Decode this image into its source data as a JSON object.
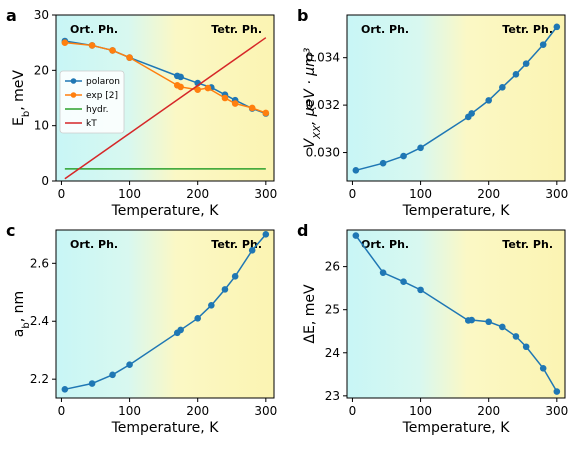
{
  "chart_data": [
    {
      "panel": "a",
      "type": "line",
      "xlabel": "Temperature, K",
      "ylabel": "E",
      "ylabel_sub": "b",
      "ylabel_unit": ", meV",
      "xlim": [
        -8,
        312
      ],
      "ylim": [
        0,
        30
      ],
      "xticks": [
        0,
        100,
        200,
        300
      ],
      "yticks": [
        0,
        10,
        20,
        30
      ],
      "phase_labels": [
        "Ort. Ph.",
        "Tetr. Ph."
      ],
      "legend": {
        "position": "center-left"
      },
      "series": [
        {
          "name": "polaron",
          "color": "#1f77b4",
          "markers": true,
          "x": [
            5,
            45,
            75,
            100,
            170,
            175,
            200,
            220,
            240,
            255,
            280,
            300
          ],
          "y": [
            25.3,
            24.5,
            23.6,
            22.3,
            19.0,
            18.8,
            17.7,
            16.9,
            15.6,
            14.6,
            13.1,
            12.2
          ]
        },
        {
          "name": "exp [2]",
          "color": "#ff7f0e",
          "markers": true,
          "x": [
            5,
            45,
            75,
            100,
            170,
            175,
            200,
            215,
            240,
            255,
            280,
            300
          ],
          "y": [
            25.0,
            24.5,
            23.6,
            22.3,
            17.3,
            17.0,
            16.5,
            16.8,
            15.0,
            14.0,
            13.2,
            12.3
          ]
        },
        {
          "name": "hydr.",
          "color": "#2ca02c",
          "markers": false,
          "x": [
            5,
            300
          ],
          "y": [
            2.2,
            2.2
          ]
        },
        {
          "name": "kT",
          "color": "#d62728",
          "markers": false,
          "x": [
            5,
            300
          ],
          "y": [
            0.4,
            25.9
          ]
        }
      ]
    },
    {
      "panel": "b",
      "type": "line",
      "xlabel": "Temperature, K",
      "ylabel": "V",
      "ylabel_sub": "XX",
      "ylabel_unit": ", μeV · μm³",
      "xlim": [
        -8,
        312
      ],
      "ylim": [
        0.0288,
        0.0358
      ],
      "xticks": [
        0,
        100,
        200,
        300
      ],
      "yticks": [
        0.03,
        0.032,
        0.034
      ],
      "ytick_labels": [
        "0.030",
        "0.032",
        "0.034"
      ],
      "phase_labels": [
        "Ort. Ph.",
        "Tetr. Ph."
      ],
      "series": [
        {
          "name": "",
          "color": "#1f77b4",
          "markers": true,
          "x": [
            5,
            45,
            75,
            100,
            170,
            175,
            200,
            220,
            240,
            255,
            280,
            300
          ],
          "y": [
            0.02925,
            0.02955,
            0.02985,
            0.0302,
            0.0315,
            0.03165,
            0.0322,
            0.03275,
            0.0333,
            0.03375,
            0.03455,
            0.0353
          ]
        }
      ]
    },
    {
      "panel": "c",
      "type": "line",
      "xlabel": "Temperature, K",
      "ylabel": "a",
      "ylabel_sub": "b",
      "ylabel_unit": ", nm",
      "xlim": [
        -8,
        312
      ],
      "ylim": [
        2.135,
        2.715
      ],
      "xticks": [
        0,
        100,
        200,
        300
      ],
      "yticks": [
        2.2,
        2.4,
        2.6
      ],
      "ytick_labels": [
        "2.2",
        "2.4",
        "2.6"
      ],
      "phase_labels": [
        "Ort. Ph.",
        "Tetr. Ph."
      ],
      "series": [
        {
          "name": "",
          "color": "#1f77b4",
          "markers": true,
          "x": [
            5,
            45,
            75,
            100,
            170,
            175,
            200,
            220,
            240,
            255,
            280,
            300
          ],
          "y": [
            2.165,
            2.185,
            2.215,
            2.25,
            2.36,
            2.37,
            2.41,
            2.455,
            2.51,
            2.555,
            2.645,
            2.7
          ]
        }
      ]
    },
    {
      "panel": "d",
      "type": "line",
      "xlabel": "Temperature, K",
      "ylabel": "ΔE, meV",
      "xlim": [
        -8,
        312
      ],
      "ylim": [
        22.95,
        26.85
      ],
      "xticks": [
        0,
        100,
        200,
        300
      ],
      "yticks": [
        23,
        24,
        25,
        26
      ],
      "phase_labels": [
        "Ort. Ph.",
        "Tetr. Ph."
      ],
      "series": [
        {
          "name": "",
          "color": "#1f77b4",
          "markers": true,
          "x": [
            5,
            45,
            75,
            100,
            170,
            175,
            200,
            220,
            240,
            255,
            280,
            300
          ],
          "y": [
            26.72,
            25.86,
            25.65,
            25.46,
            24.75,
            24.76,
            24.72,
            24.6,
            24.38,
            24.14,
            23.64,
            23.1
          ]
        }
      ]
    }
  ]
}
